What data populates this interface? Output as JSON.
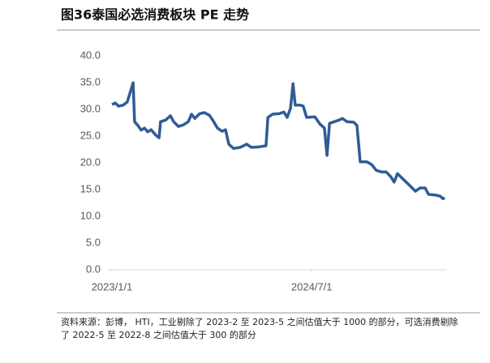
{
  "chart_data": {
    "type": "line",
    "title": "图36泰国必选消费板块 PE 走势",
    "note": "资料来源：彭博， HTI，工业剔除了 2023-2 至 2023-5 之间估值大于 1000 的部分，可选消费剔除了 2022-5 至 2022-8 之间估值大于 300 的部分",
    "color": "#2f5c96",
    "x": [
      "2023-01-01",
      "2023-01-10",
      "2023-01-19",
      "2023-02-01",
      "2023-02-12",
      "2023-02-28",
      "2023-03-04",
      "2023-03-13",
      "2023-03-22",
      "2023-03-31",
      "2023-04-09",
      "2023-04-18",
      "2023-05-01",
      "2023-05-10",
      "2023-05-14",
      "2023-05-28",
      "2023-06-10",
      "2023-06-19",
      "2023-07-02",
      "2023-07-16",
      "2023-07-29",
      "2023-08-07",
      "2023-08-16",
      "2023-08-29",
      "2023-09-11",
      "2023-09-25",
      "2023-10-04",
      "2023-10-17",
      "2023-10-30",
      "2023-11-08",
      "2023-11-17",
      "2023-11-30",
      "2023-12-18",
      "2024-01-05",
      "2024-01-18",
      "2024-02-09",
      "2024-02-27",
      "2024-03-03",
      "2024-03-16",
      "2024-04-03",
      "2024-04-16",
      "2024-04-25",
      "2024-05-04",
      "2024-05-11",
      "2024-05-17",
      "2024-05-31",
      "2024-06-08",
      "2024-06-17",
      "2024-07-10",
      "2024-07-23",
      "2024-08-05",
      "2024-08-12",
      "2024-08-19",
      "2024-09-01",
      "2024-09-14",
      "2024-09-23",
      "2024-10-06",
      "2024-10-24",
      "2024-11-02",
      "2024-11-11",
      "2024-11-29",
      "2024-12-12",
      "2024-12-25",
      "2025-01-08",
      "2025-01-21",
      "2025-02-03",
      "2025-02-12",
      "2025-02-21",
      "2025-03-11",
      "2025-03-29",
      "2025-04-11",
      "2025-04-24",
      "2025-05-08",
      "2025-05-17",
      "2025-06-03",
      "2025-06-17",
      "2025-06-26",
      "2025-06-30"
    ],
    "values": [
      30.9,
      31.2,
      30.6,
      30.8,
      31.4,
      35.0,
      27.7,
      27.0,
      26.1,
      26.5,
      25.8,
      26.2,
      25.2,
      24.7,
      27.7,
      28.0,
      28.8,
      27.7,
      26.8,
      27.1,
      27.7,
      29.1,
      28.3,
      29.2,
      29.4,
      28.9,
      28.0,
      26.5,
      25.9,
      26.2,
      23.5,
      22.7,
      22.9,
      23.5,
      22.9,
      23.0,
      23.2,
      28.5,
      29.1,
      29.2,
      29.5,
      28.5,
      30.2,
      34.8,
      30.8,
      30.8,
      30.6,
      28.5,
      28.6,
      27.3,
      26.5,
      21.4,
      27.4,
      27.7,
      28.0,
      28.3,
      27.7,
      27.6,
      27.0,
      20.2,
      20.2,
      19.7,
      18.6,
      18.3,
      18.3,
      17.4,
      16.4,
      18.0,
      16.8,
      15.6,
      14.7,
      15.3,
      15.3,
      14.1,
      14.0,
      13.8,
      13.3,
      13.5
    ],
    "xlim": [
      "2023-01-01",
      "2025-06-30"
    ],
    "xticks": [
      {
        "value": "2023-01-01",
        "label": "2023/1/1"
      },
      {
        "value": "2024-07-01",
        "label": "2024/7/1"
      }
    ],
    "ylim": [
      0,
      40
    ],
    "yticks": [
      {
        "value": 0,
        "label": "0.0"
      },
      {
        "value": 5,
        "label": "5.0"
      },
      {
        "value": 10,
        "label": "10.0"
      },
      {
        "value": 15,
        "label": "15.0"
      },
      {
        "value": 20,
        "label": "20.0"
      },
      {
        "value": 25,
        "label": "25.0"
      },
      {
        "value": 30,
        "label": "30.0"
      },
      {
        "value": 35,
        "label": "35.0"
      },
      {
        "value": 40,
        "label": "40.0"
      }
    ]
  }
}
